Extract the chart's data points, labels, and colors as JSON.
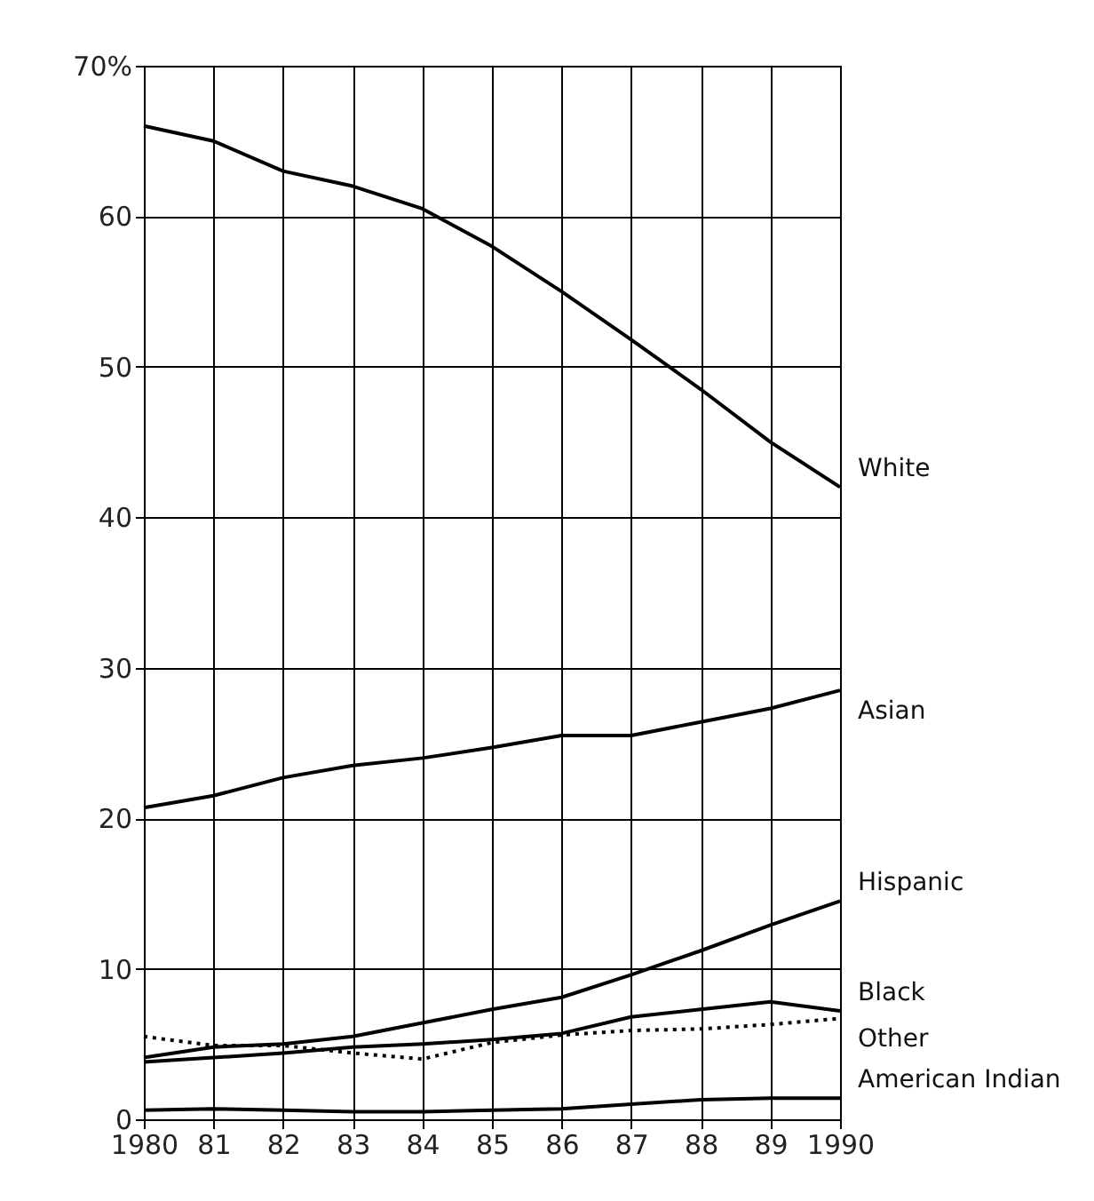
{
  "chart_data": {
    "type": "line",
    "categories": [
      "1980",
      "81",
      "82",
      "83",
      "84",
      "85",
      "86",
      "87",
      "88",
      "89",
      "1990"
    ],
    "series": [
      {
        "name": "White",
        "color": "#000000",
        "values": [
          66,
          65,
          63,
          62,
          60.5,
          58,
          55,
          51.8,
          48.5,
          45,
          42
        ]
      },
      {
        "name": "Asian",
        "color": "#000000",
        "values": [
          20.7,
          21.5,
          22.7,
          23.5,
          24,
          24.7,
          25.5,
          25.5,
          26.4,
          27.3,
          28.5
        ]
      },
      {
        "name": "Hispanic",
        "color": "#000000",
        "values": [
          4.1,
          4.8,
          5,
          5.5,
          6.4,
          7.3,
          8.1,
          9.6,
          11.2,
          12.9,
          14.5
        ]
      },
      {
        "name": "Black",
        "color": "#000000",
        "values": [
          3.8,
          4.1,
          4.4,
          4.8,
          5,
          5.3,
          5.7,
          6.8,
          7.3,
          7.8,
          7.2
        ]
      },
      {
        "name": "Other",
        "color": "#000000",
        "line_style": "dotted",
        "values": [
          5.5,
          4.9,
          4.9,
          4.4,
          4,
          5.1,
          5.6,
          5.9,
          6,
          6.3,
          6.7
        ]
      },
      {
        "name": "American Indian",
        "color": "#000000",
        "values": [
          0.6,
          0.7,
          0.6,
          0.5,
          0.5,
          0.6,
          0.7,
          1,
          1.3,
          1.4,
          1.4
        ]
      }
    ],
    "ylim": [
      0,
      70
    ],
    "yticks": [
      0,
      10,
      20,
      30,
      40,
      50,
      60,
      {
        "value": 70,
        "label": "70%"
      }
    ],
    "grid": true,
    "legend": false,
    "marker": "none",
    "line_style": "solid"
  }
}
